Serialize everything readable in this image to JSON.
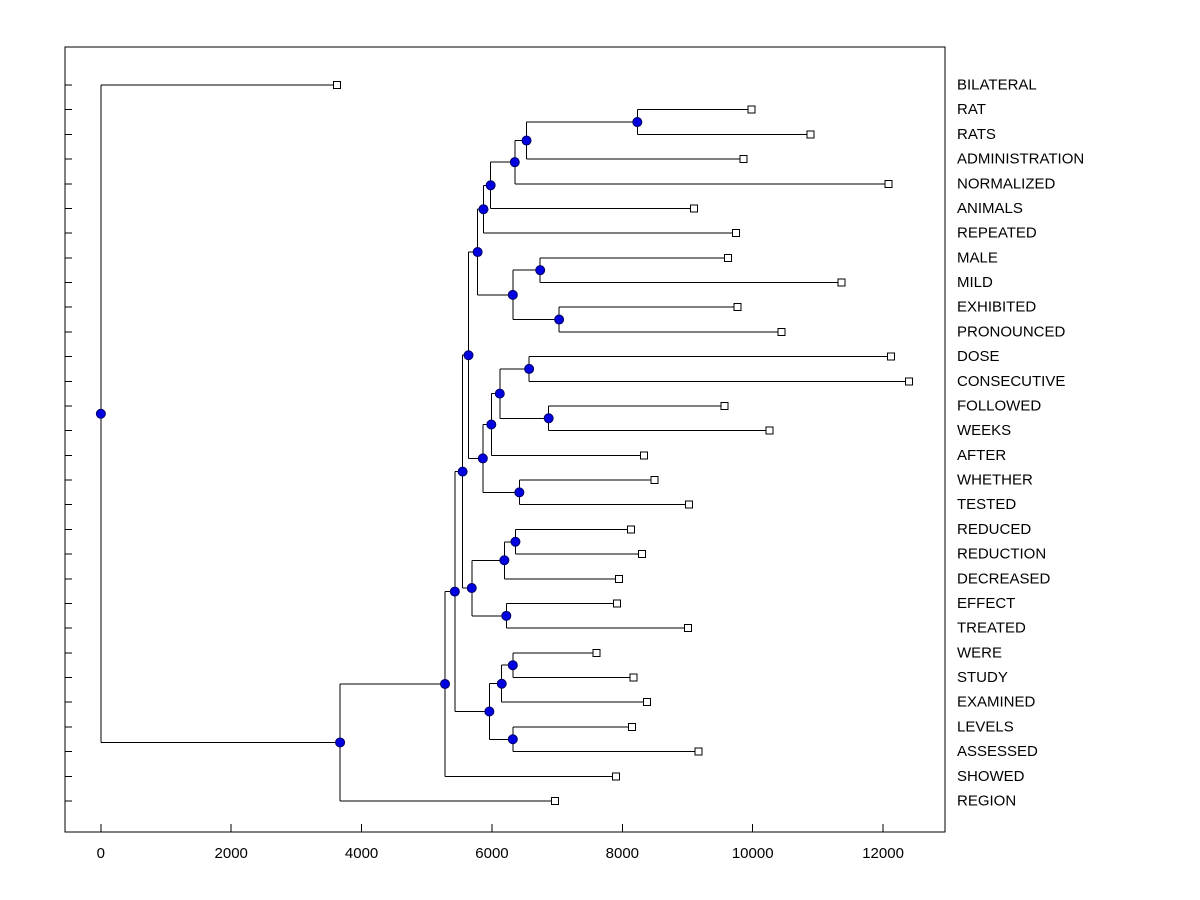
{
  "figure": {
    "background": "#ffffff",
    "plot_background": "#ffffff",
    "border_color": "#000000",
    "line_color": "#000000",
    "text_color": "#000000",
    "node_marker": {
      "shape": "filled-circle",
      "fill": "#0000e0",
      "stroke": "#000066",
      "radius": 4.5
    },
    "leaf_marker": {
      "shape": "open-square",
      "fill": "#ffffff",
      "stroke": "#000000",
      "size": 7
    },
    "font_size_labels": 15,
    "font_size_ticks": 15
  },
  "chart_data": {
    "type": "dendrogram",
    "orientation": "horizontal",
    "title": "",
    "xlabel": "",
    "ylabel": "",
    "grid": false,
    "legend": false,
    "xlim": [
      -550,
      12950
    ],
    "x_tick_values": [
      0,
      2000,
      4000,
      6000,
      8000,
      10000,
      12000
    ],
    "leaves": [
      "BILATERAL",
      "RAT",
      "RATS",
      "ADMINISTRATION",
      "NORMALIZED",
      "ANIMALS",
      "REPEATED",
      "MALE",
      "MILD",
      "EXHIBITED",
      "PRONOUNCED",
      "DOSE",
      "CONSECUTIVE",
      "FOLLOWED",
      "WEEKS",
      "AFTER",
      "WHETHER",
      "TESTED",
      "REDUCED",
      "REDUCTION",
      "DECREASED",
      "EFFECT",
      "TREATED",
      "WERE",
      "STUDY",
      "EXAMINED",
      "LEVELS",
      "ASSESSED",
      "SHOWED",
      "REGION"
    ],
    "tree": {
      "v": 0,
      "c": [
        {
          "v": 3620,
          "n": "BILATERAL"
        },
        {
          "v": 3670,
          "c": [
            {
              "v": 5280,
              "c": [
                {
                  "v": 5430,
                  "c": [
                    {
                      "v": 5550,
                      "c": [
                        {
                          "v": 5640,
                          "c": [
                            {
                              "v": 5780,
                              "c": [
                                {
                                  "v": 5870,
                                  "c": [
                                    {
                                      "v": 5980,
                                      "c": [
                                        {
                                          "v": 6350,
                                          "c": [
                                            {
                                              "v": 6530,
                                              "c": [
                                                {
                                                  "v": 8230,
                                                  "c": [
                                                    {
                                                      "v": 9980,
                                                      "n": "RAT"
                                                    },
                                                    {
                                                      "v": 10890,
                                                      "n": "RATS"
                                                    }
                                                  ]
                                                },
                                                {
                                                  "v": 9860,
                                                  "n": "ADMINISTRATION"
                                                }
                                              ]
                                            },
                                            {
                                              "v": 12080,
                                              "n": "NORMALIZED"
                                            }
                                          ]
                                        },
                                        {
                                          "v": 9100,
                                          "n": "ANIMALS"
                                        }
                                      ]
                                    },
                                    {
                                      "v": 9740,
                                      "n": "REPEATED"
                                    }
                                  ]
                                },
                                {
                                  "v": 6320,
                                  "c": [
                                    {
                                      "v": 6740,
                                      "c": [
                                        {
                                          "v": 9620,
                                          "n": "MALE"
                                        },
                                        {
                                          "v": 11360,
                                          "n": "MILD"
                                        }
                                      ]
                                    },
                                    {
                                      "v": 7030,
                                      "c": [
                                        {
                                          "v": 9770,
                                          "n": "EXHIBITED"
                                        },
                                        {
                                          "v": 10440,
                                          "n": "PRONOUNCED"
                                        }
                                      ]
                                    }
                                  ]
                                }
                              ]
                            },
                            {
                              "v": 5860,
                              "c": [
                                {
                                  "v": 5990,
                                  "c": [
                                    {
                                      "v": 6120,
                                      "c": [
                                        {
                                          "v": 6570,
                                          "c": [
                                            {
                                              "v": 12120,
                                              "n": "DOSE"
                                            },
                                            {
                                              "v": 12400,
                                              "n": "CONSECUTIVE"
                                            }
                                          ]
                                        },
                                        {
                                          "v": 6870,
                                          "c": [
                                            {
                                              "v": 9570,
                                              "n": "FOLLOWED"
                                            },
                                            {
                                              "v": 10260,
                                              "n": "WEEKS"
                                            }
                                          ]
                                        }
                                      ]
                                    },
                                    {
                                      "v": 8330,
                                      "n": "AFTER"
                                    }
                                  ]
                                },
                                {
                                  "v": 6420,
                                  "c": [
                                    {
                                      "v": 8490,
                                      "n": "WHETHER"
                                    },
                                    {
                                      "v": 9020,
                                      "n": "TESTED"
                                    }
                                  ]
                                }
                              ]
                            }
                          ]
                        },
                        {
                          "v": 5690,
                          "c": [
                            {
                              "v": 6190,
                              "c": [
                                {
                                  "v": 6360,
                                  "c": [
                                    {
                                      "v": 8130,
                                      "n": "REDUCED"
                                    },
                                    {
                                      "v": 8300,
                                      "n": "REDUCTION"
                                    }
                                  ]
                                },
                                {
                                  "v": 7950,
                                  "n": "DECREASED"
                                }
                              ]
                            },
                            {
                              "v": 6220,
                              "c": [
                                {
                                  "v": 7920,
                                  "n": "EFFECT"
                                },
                                {
                                  "v": 9010,
                                  "n": "TREATED"
                                }
                              ]
                            }
                          ]
                        }
                      ]
                    },
                    {
                      "v": 5960,
                      "c": [
                        {
                          "v": 6150,
                          "c": [
                            {
                              "v": 6320,
                              "c": [
                                {
                                  "v": 7600,
                                  "n": "WERE"
                                },
                                {
                                  "v": 8170,
                                  "n": "STUDY"
                                }
                              ]
                            },
                            {
                              "v": 8380,
                              "n": "EXAMINED"
                            }
                          ]
                        },
                        {
                          "v": 6320,
                          "c": [
                            {
                              "v": 8150,
                              "n": "LEVELS"
                            },
                            {
                              "v": 9170,
                              "n": "ASSESSED"
                            }
                          ]
                        }
                      ]
                    }
                  ]
                },
                {
                  "v": 7900,
                  "n": "SHOWED"
                }
              ]
            },
            {
              "v": 6970,
              "n": "REGION"
            }
          ]
        }
      ]
    }
  }
}
